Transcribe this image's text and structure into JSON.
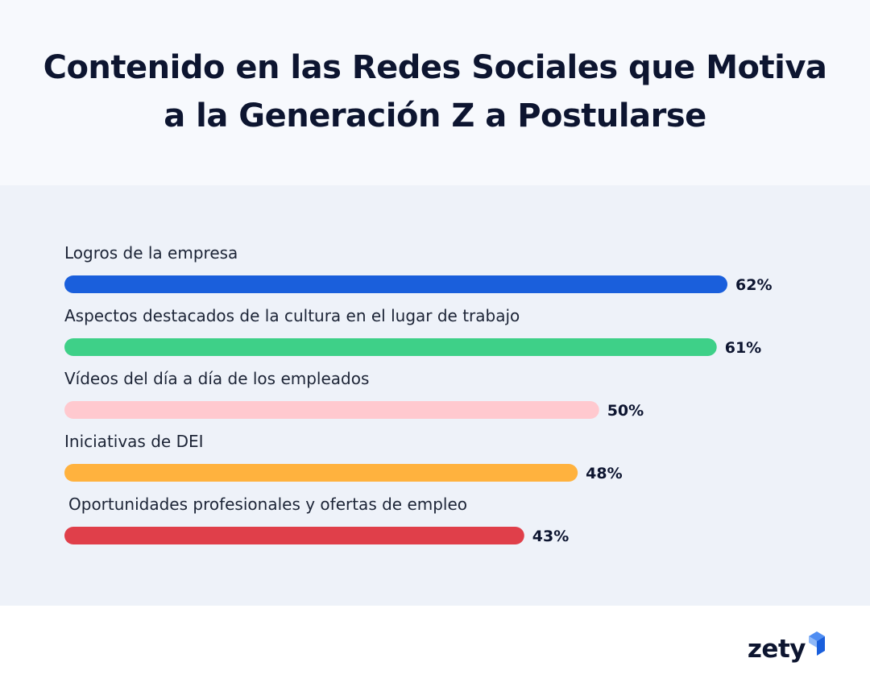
{
  "title_lines": [
    "Contenido en las Redes Sociales que Motiva",
    "a la Generación Z a Postularse"
  ],
  "chart_data": {
    "type": "bar",
    "orientation": "horizontal",
    "title": "Contenido en las Redes Sociales que Motiva a la Generación Z a Postularse",
    "categories": [
      "Logros de la empresa",
      "Aspectos destacados de la cultura en el lugar de trabajo",
      "Vídeos del día a día de los empleados",
      "Iniciativas de DEI",
      "Oportunidades profesionales y ofertas de empleo"
    ],
    "values": [
      62,
      61,
      50,
      48,
      43
    ],
    "value_labels": [
      "62%",
      "61%",
      "50%",
      "48%",
      "43%"
    ],
    "colors": [
      "#1a5fdc",
      "#3ed088",
      "#ffc9cf",
      "#ffb23e",
      "#e03f4a"
    ],
    "unit": "%",
    "xlim": [
      0,
      100
    ],
    "grid": false,
    "legend": "none"
  },
  "brand": {
    "name": "zety",
    "accent": "#1a5fdc"
  }
}
